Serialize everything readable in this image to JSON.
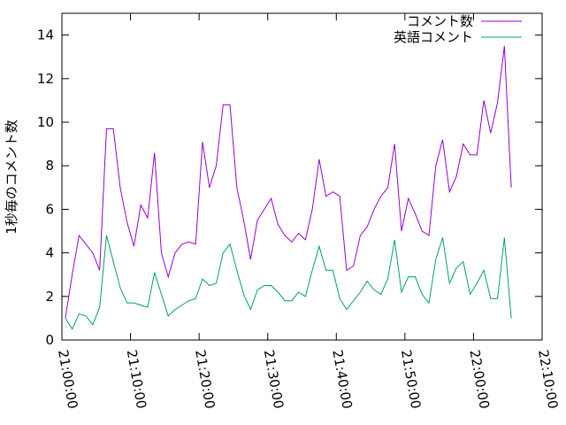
{
  "chart_data": {
    "type": "line",
    "ylabel": "1秒毎のコメント数",
    "x": [
      "21:00:30",
      "21:01:30",
      "21:02:30",
      "21:03:30",
      "21:04:30",
      "21:05:30",
      "21:06:30",
      "21:07:30",
      "21:08:30",
      "21:09:30",
      "21:10:30",
      "21:11:30",
      "21:12:30",
      "21:13:30",
      "21:14:30",
      "21:15:30",
      "21:16:30",
      "21:17:30",
      "21:18:30",
      "21:19:30",
      "21:20:30",
      "21:21:30",
      "21:22:30",
      "21:23:30",
      "21:24:30",
      "21:25:30",
      "21:26:30",
      "21:27:30",
      "21:28:30",
      "21:29:30",
      "21:30:30",
      "21:31:30",
      "21:32:30",
      "21:33:30",
      "21:34:30",
      "21:35:30",
      "21:36:30",
      "21:37:30",
      "21:38:30",
      "21:39:30",
      "21:40:30",
      "21:41:30",
      "21:42:30",
      "21:43:30",
      "21:44:30",
      "21:45:30",
      "21:46:30",
      "21:47:30",
      "21:48:30",
      "21:49:30",
      "21:50:30",
      "21:51:30",
      "21:52:30",
      "21:53:30",
      "21:54:30",
      "21:55:30",
      "21:56:30",
      "21:57:30",
      "21:58:30",
      "21:59:30",
      "22:00:30",
      "22:01:30",
      "22:02:30",
      "22:03:30",
      "22:04:30",
      "22:05:30"
    ],
    "series": [
      {
        "name": "コメント数",
        "color": "#9400d3",
        "values": [
          1.0,
          3.0,
          4.8,
          4.4,
          4.0,
          3.2,
          9.7,
          9.7,
          7.0,
          5.4,
          4.3,
          6.2,
          5.6,
          8.6,
          4.0,
          2.9,
          4.0,
          4.4,
          4.5,
          4.4,
          9.1,
          7.0,
          8.0,
          10.8,
          10.8,
          7.0,
          5.5,
          3.7,
          5.5,
          6.0,
          6.5,
          5.3,
          4.8,
          4.5,
          4.9,
          4.6,
          6.0,
          8.3,
          6.6,
          6.8,
          6.6,
          3.2,
          3.4,
          4.8,
          5.2,
          6.0,
          6.6,
          7.0,
          9.0,
          5.0,
          6.5,
          5.8,
          5.0,
          4.8,
          8.0,
          9.2,
          6.8,
          7.5,
          9.0,
          8.5,
          8.5,
          11.0,
          9.5,
          10.9,
          13.5,
          7.0
        ]
      },
      {
        "name": "英語コメント",
        "color": "#009e73",
        "values": [
          1.0,
          0.5,
          1.2,
          1.1,
          0.7,
          1.5,
          4.8,
          3.6,
          2.4,
          1.7,
          1.7,
          1.6,
          1.5,
          3.1,
          2.1,
          1.1,
          1.4,
          1.6,
          1.8,
          1.9,
          2.8,
          2.5,
          2.6,
          4.0,
          4.4,
          3.2,
          2.1,
          1.4,
          2.3,
          2.5,
          2.5,
          2.2,
          1.8,
          1.8,
          2.2,
          2.0,
          3.2,
          4.3,
          3.2,
          3.2,
          1.9,
          1.4,
          1.8,
          2.2,
          2.7,
          2.3,
          2.1,
          2.8,
          4.6,
          2.2,
          2.9,
          2.9,
          2.1,
          1.7,
          3.7,
          4.7,
          2.6,
          3.3,
          3.6,
          2.1,
          2.6,
          3.2,
          1.9,
          1.9,
          4.7,
          1.0
        ]
      }
    ],
    "xlim": [
      "21:00:00",
      "22:10:00"
    ],
    "xticks": [
      "21:00:00",
      "21:10:00",
      "21:20:00",
      "21:30:00",
      "21:40:00",
      "21:50:00",
      "22:00:00",
      "22:10:00"
    ],
    "ylim": [
      0,
      15
    ],
    "yticks": [
      0,
      2,
      4,
      6,
      8,
      10,
      12,
      14
    ],
    "legend": "top-right"
  }
}
